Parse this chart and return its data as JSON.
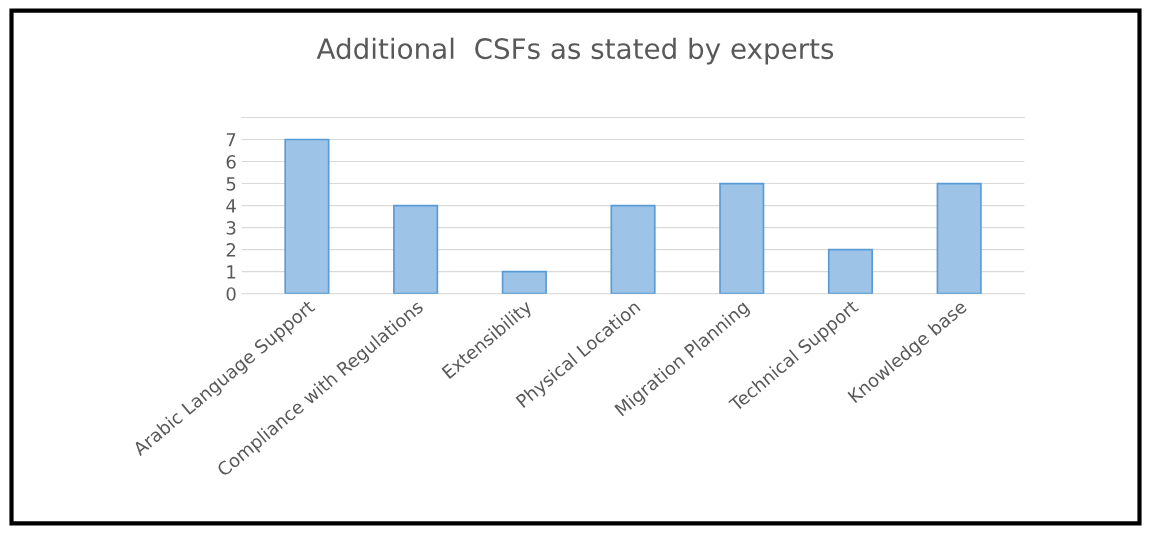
{
  "chart_data": {
    "type": "bar",
    "title": "Additional  CSFs as stated by experts",
    "categories": [
      "Arabic Language Support",
      "Compliance with Regulations",
      "Extensibility",
      "Physical Location",
      "Migration Planning",
      "Technical Support",
      "Knowledge base"
    ],
    "values": [
      7,
      4,
      1,
      4,
      5,
      2,
      5
    ],
    "color": "#9dc3e6",
    "ylim": [
      0,
      8
    ],
    "yticks": [
      0,
      1,
      2,
      3,
      4,
      5,
      6,
      7
    ],
    "grid": "y",
    "legend": false
  }
}
